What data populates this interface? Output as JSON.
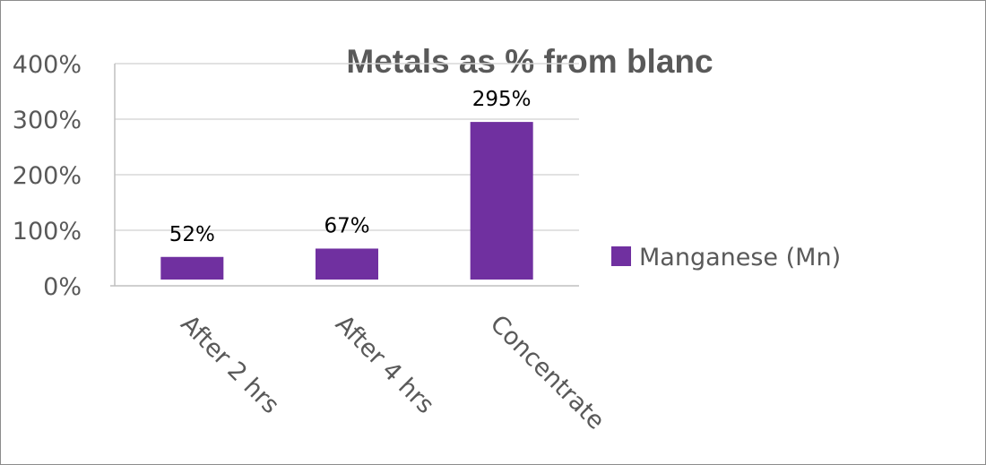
{
  "chart_data": {
    "type": "bar",
    "title": "Metals as % from blanc",
    "categories": [
      "After 2 hrs",
      "After 4 hrs",
      "Concentrate"
    ],
    "series": [
      {
        "name": "Manganese (Mn)",
        "values": [
          52,
          67,
          295
        ],
        "color": "#7030A0"
      }
    ],
    "data_labels": [
      "52%",
      "67%",
      "295%"
    ],
    "y_ticks": [
      0,
      100,
      200,
      300,
      400
    ],
    "y_tick_labels": [
      "0%",
      "100%",
      "200%",
      "300%",
      "400%"
    ],
    "ylim": [
      0,
      400
    ],
    "grid": true,
    "legend_position": "right",
    "gridline_color": "#d9d9d9",
    "axis_color": "#bfbfbf"
  }
}
